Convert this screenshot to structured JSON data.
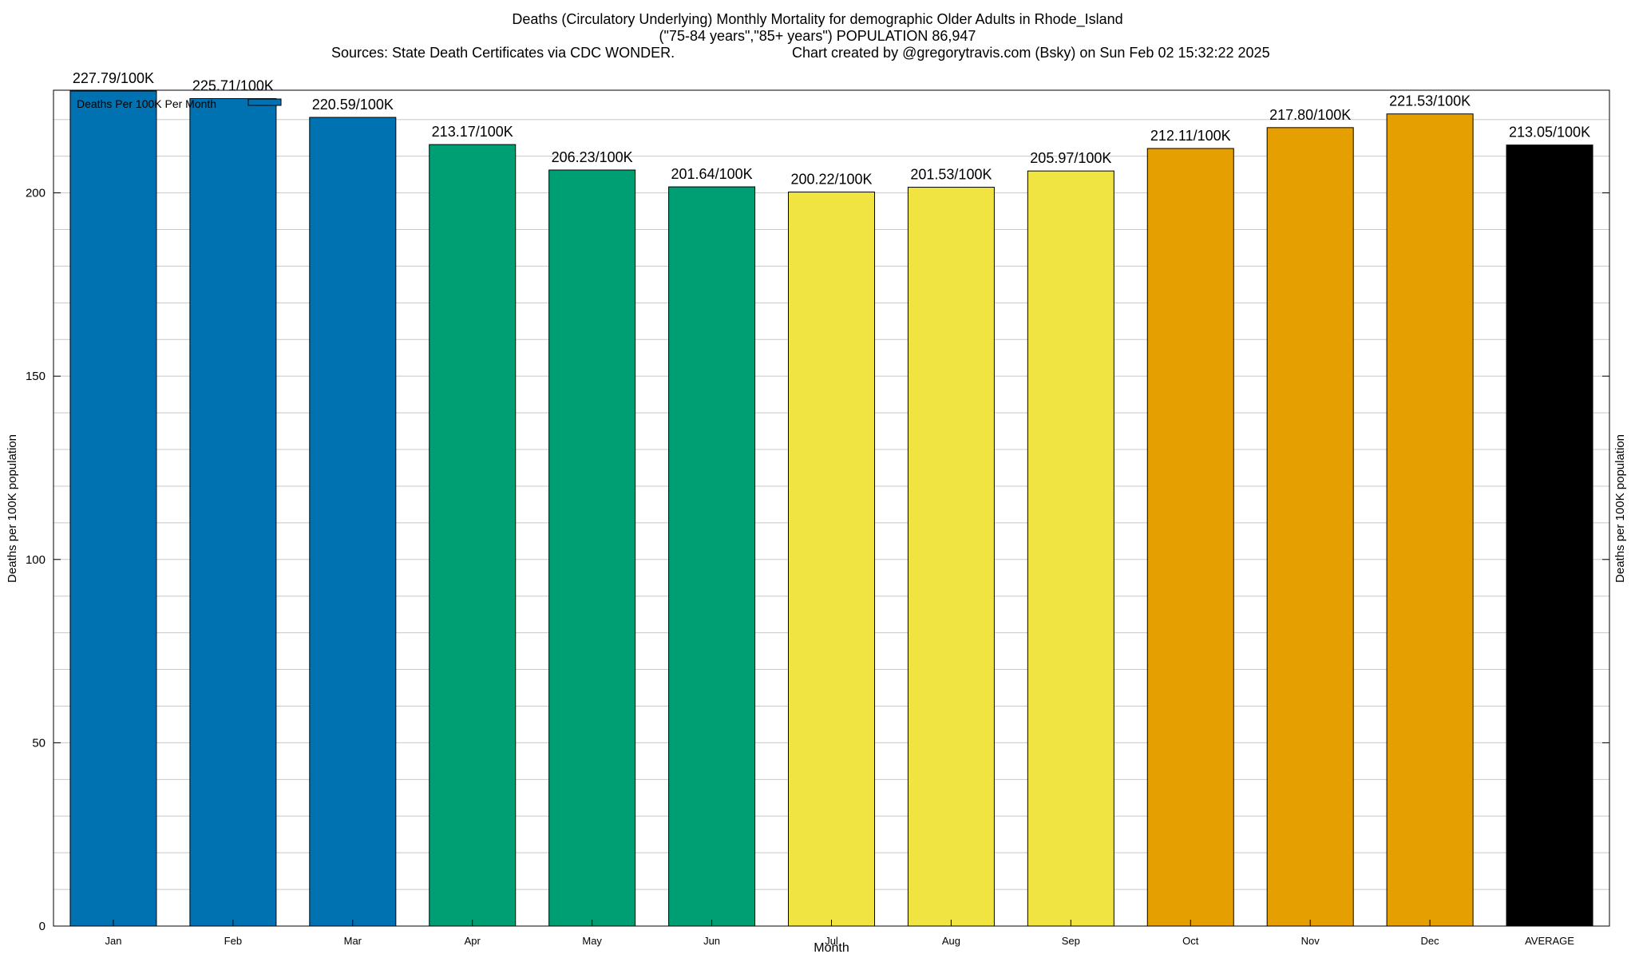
{
  "title_lines": [
    "Deaths (Circulatory Underlying) Monthly Mortality for demographic Older Adults in Rhode_Island",
    "(\"75-84 years\",\"85+ years\") POPULATION 86,947"
  ],
  "sources": "Sources: State Death Certificates via CDC WONDER.",
  "credit": "Chart created by @gregorytravis.com (Bsky) on Sun Feb 02 15:32:22 2025",
  "colors": {
    "blue": "#0072b2",
    "green": "#009e73",
    "yellow": "#f0e442",
    "orange": "#e69f00",
    "black": "#000000",
    "grid": "#c8c8c8"
  },
  "chart_data": {
    "type": "bar",
    "xlabel": "Month",
    "ylabel": "Deaths per 100K population",
    "ylabel_right": "Deaths per 100K population",
    "ylim": [
      0,
      228
    ],
    "yticks": [
      0,
      50,
      100,
      150,
      200
    ],
    "grid": true,
    "legend": {
      "label": "Deaths Per 100K Per Month",
      "position": "top-left"
    },
    "categories": [
      "Jan",
      "Feb",
      "Mar",
      "Apr",
      "May",
      "Jun",
      "Jul",
      "Aug",
      "Sep",
      "Oct",
      "Nov",
      "Dec",
      "AVERAGE"
    ],
    "values": [
      227.79,
      225.71,
      220.59,
      213.17,
      206.23,
      201.64,
      200.22,
      201.53,
      205.97,
      212.11,
      217.8,
      221.53,
      213.05
    ],
    "labels": [
      "227.79/100K",
      "225.71/100K",
      "220.59/100K",
      "213.17/100K",
      "206.23/100K",
      "201.64/100K",
      "200.22/100K",
      "201.53/100K",
      "205.97/100K",
      "212.11/100K",
      "217.80/100K",
      "221.53/100K",
      "213.05/100K"
    ],
    "bar_colors": [
      "blue",
      "blue",
      "blue",
      "green",
      "green",
      "green",
      "yellow",
      "yellow",
      "yellow",
      "orange",
      "orange",
      "orange",
      "black"
    ]
  }
}
